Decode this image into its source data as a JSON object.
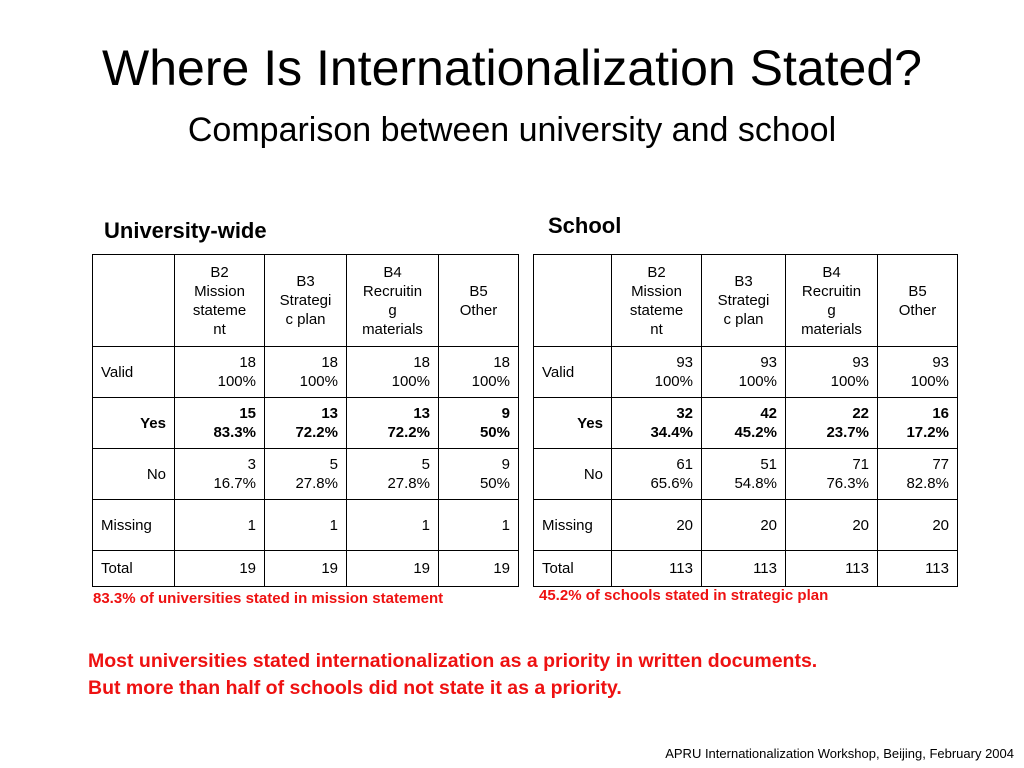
{
  "slide": {
    "title": "Where Is Internationalization Stated?",
    "subtitle": "Comparison between university and school",
    "footer": "APRU Internationalization Workshop, Beijing, February 2004"
  },
  "headers": {
    "corner": "",
    "b2": [
      "B2",
      "Mission",
      "stateme",
      "nt"
    ],
    "b3": [
      "B3",
      "Strategi",
      "c plan"
    ],
    "b4": [
      "B4",
      "Recruitin",
      "g",
      "materials"
    ],
    "b5": [
      "B5",
      "Other"
    ]
  },
  "university": {
    "label": "University-wide",
    "rows": {
      "valid": {
        "label": "Valid",
        "cells": [
          [
            "18",
            "100%"
          ],
          [
            "18",
            "100%"
          ],
          [
            "18",
            "100%"
          ],
          [
            "18",
            "100%"
          ]
        ]
      },
      "yes": {
        "label": "Yes",
        "cells": [
          [
            "15",
            "83.3%"
          ],
          [
            "13",
            "72.2%"
          ],
          [
            "13",
            "72.2%"
          ],
          [
            "9",
            "50%"
          ]
        ]
      },
      "no": {
        "label": "No",
        "cells": [
          [
            "3",
            "16.7%"
          ],
          [
            "5",
            "27.8%"
          ],
          [
            "5",
            "27.8%"
          ],
          [
            "9",
            "50%"
          ]
        ]
      },
      "missing": {
        "label": "Missing",
        "cells": [
          "1",
          "1",
          "1",
          "1"
        ]
      },
      "total": {
        "label": "Total",
        "cells": [
          "19",
          "19",
          "19",
          "19"
        ]
      }
    },
    "note": "83.3% of universities stated in mission statement"
  },
  "school": {
    "label": "School",
    "rows": {
      "valid": {
        "label": "Valid",
        "cells": [
          [
            "93",
            "100%"
          ],
          [
            "93",
            "100%"
          ],
          [
            "93",
            "100%"
          ],
          [
            "93",
            "100%"
          ]
        ]
      },
      "yes": {
        "label": "Yes",
        "cells": [
          [
            "32",
            "34.4%"
          ],
          [
            "42",
            "45.2%"
          ],
          [
            "22",
            "23.7%"
          ],
          [
            "16",
            "17.2%"
          ]
        ]
      },
      "no": {
        "label": "No",
        "cells": [
          [
            "61",
            "65.6%"
          ],
          [
            "51",
            "54.8%"
          ],
          [
            "71",
            "76.3%"
          ],
          [
            "77",
            "82.8%"
          ]
        ]
      },
      "missing": {
        "label": "Missing",
        "cells": [
          "20",
          "20",
          "20",
          "20"
        ]
      },
      "total": {
        "label": "Total",
        "cells": [
          "113",
          "113",
          "113",
          "113"
        ]
      }
    },
    "note": "45.2% of schools stated in strategic plan"
  },
  "conclusion": {
    "line1": "Most universities stated internationalization as a priority in written documents.",
    "line2": "But more than half of schools did not state it as a priority."
  },
  "colors": {
    "highlight_text": "#ee1111",
    "border": "#000000"
  }
}
